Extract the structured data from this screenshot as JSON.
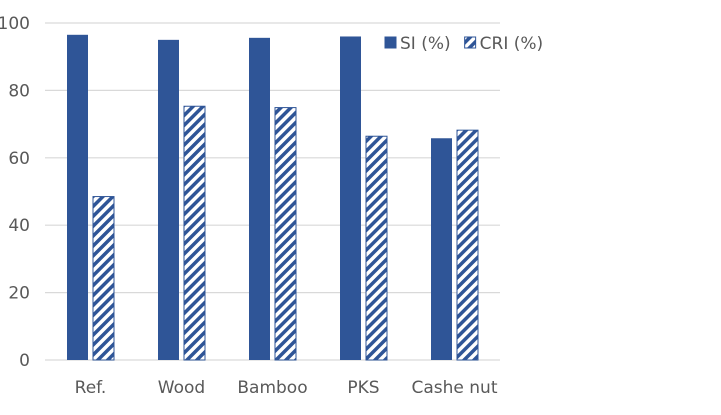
{
  "chart_data": {
    "type": "bar",
    "title": "",
    "xlabel": "",
    "ylabel": "",
    "categories": [
      "Ref.",
      "Wood",
      "Bamboo",
      "PKS",
      "Cashe nut"
    ],
    "series": [
      {
        "name": "SI (%)",
        "values": [
          96.5,
          95.0,
          95.6,
          96.0,
          65.8
        ],
        "color": "#2F5597",
        "pattern": "solid"
      },
      {
        "name": "CRI (%)",
        "values": [
          48.5,
          75.3,
          74.9,
          66.4,
          68.2
        ],
        "color": "#2F5597",
        "pattern": "diagonal-hatch"
      }
    ],
    "ylim": [
      0,
      100
    ],
    "yticks": [
      0,
      20,
      40,
      60,
      80,
      100
    ],
    "grid": true,
    "legend": "top-right"
  }
}
